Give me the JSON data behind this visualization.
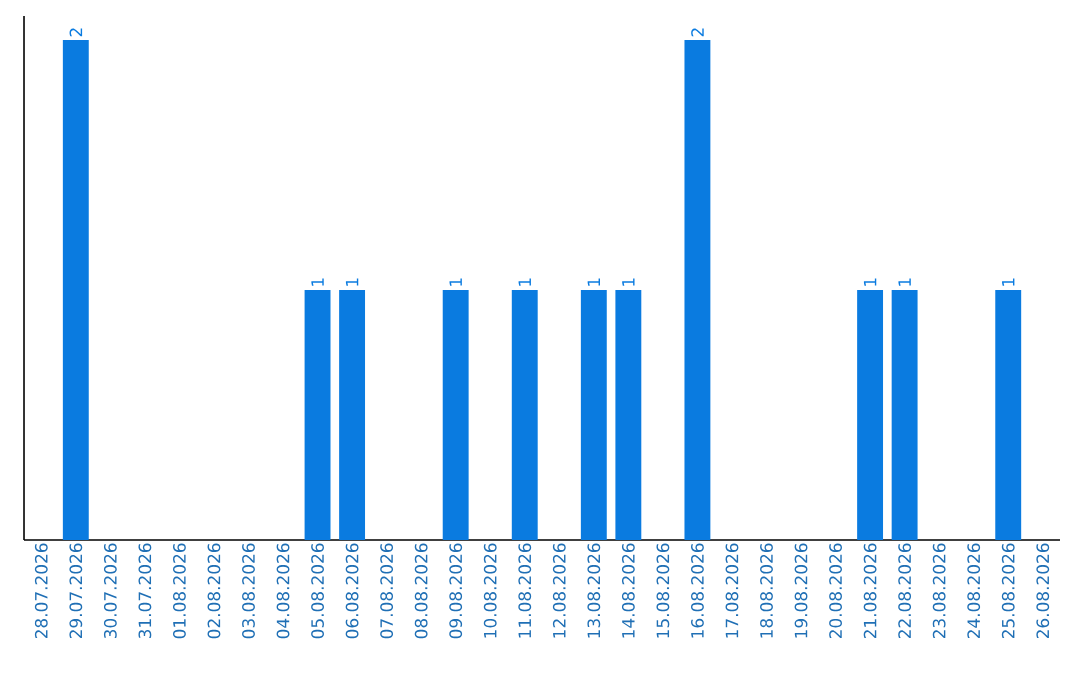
{
  "chart_data": {
    "type": "bar",
    "color": "#0a7be0",
    "categories": [
      "28.07.2026",
      "29.07.2026",
      "30.07.2026",
      "31.07.2026",
      "01.08.2026",
      "02.08.2026",
      "03.08.2026",
      "04.08.2026",
      "05.08.2026",
      "06.08.2026",
      "07.08.2026",
      "08.08.2026",
      "09.08.2026",
      "10.08.2026",
      "11.08.2026",
      "12.08.2026",
      "13.08.2026",
      "14.08.2026",
      "15.08.2026",
      "16.08.2026",
      "17.08.2026",
      "18.08.2026",
      "19.08.2026",
      "20.08.2026",
      "21.08.2026",
      "22.08.2026",
      "23.08.2026",
      "24.08.2026",
      "25.08.2026",
      "26.08.2026"
    ],
    "values": [
      0,
      2,
      0,
      0,
      0,
      0,
      0,
      0,
      1,
      1,
      0,
      0,
      1,
      0,
      1,
      0,
      1,
      1,
      0,
      2,
      0,
      0,
      0,
      0,
      1,
      1,
      0,
      0,
      1,
      0
    ],
    "value_labels": [
      null,
      "2",
      null,
      null,
      null,
      null,
      null,
      null,
      "1",
      "1",
      null,
      null,
      "1",
      null,
      "1",
      null,
      "1",
      "1",
      null,
      "2",
      null,
      null,
      null,
      null,
      "1",
      "1",
      null,
      null,
      "1",
      null
    ],
    "data_labels": false
  }
}
